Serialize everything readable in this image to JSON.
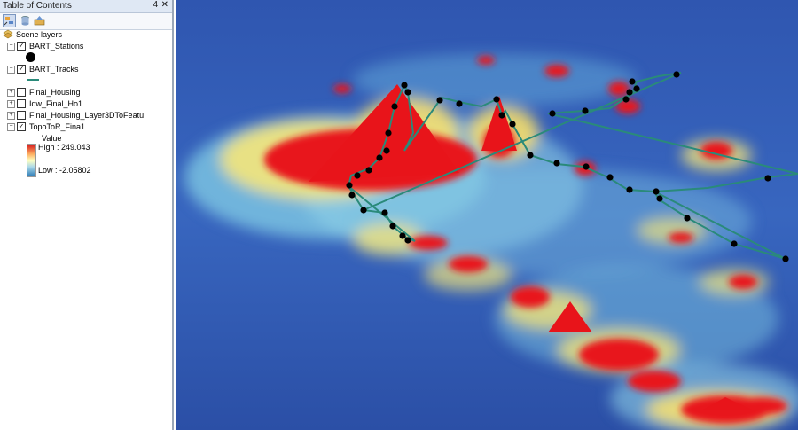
{
  "toc": {
    "title": "Table of Contents",
    "pin_glyph": "4",
    "close_glyph": "✕",
    "root_label": "Scene layers",
    "layers": [
      {
        "name": "BART_Stations",
        "checked": true,
        "expanded": true
      },
      {
        "name": "BART_Tracks",
        "checked": true,
        "expanded": true
      },
      {
        "name": "Final_Housing",
        "checked": false,
        "expanded": false
      },
      {
        "name": "Idw_Final_Ho1",
        "checked": false,
        "expanded": false
      },
      {
        "name": "Final_Housing_Layer3DToFeatu",
        "checked": false,
        "expanded": false
      },
      {
        "name": "TopoToR_Fina1",
        "checked": true,
        "expanded": true
      }
    ],
    "legend": {
      "heading": "Value",
      "high": "High : 249.043",
      "low": "Low : -2.05802"
    }
  },
  "icons": {
    "list_by_drawing_order": "list-by-drawing-order-icon",
    "list_by_source": "list-by-source-icon",
    "list_by_visibility": "list-by-visibility-icon",
    "layers_root": "layers-icon"
  },
  "colors": {
    "track": "#2a8a7a",
    "station": "#000000",
    "ramp_high": "#d7191c",
    "ramp_low": "#2c7bb6"
  }
}
